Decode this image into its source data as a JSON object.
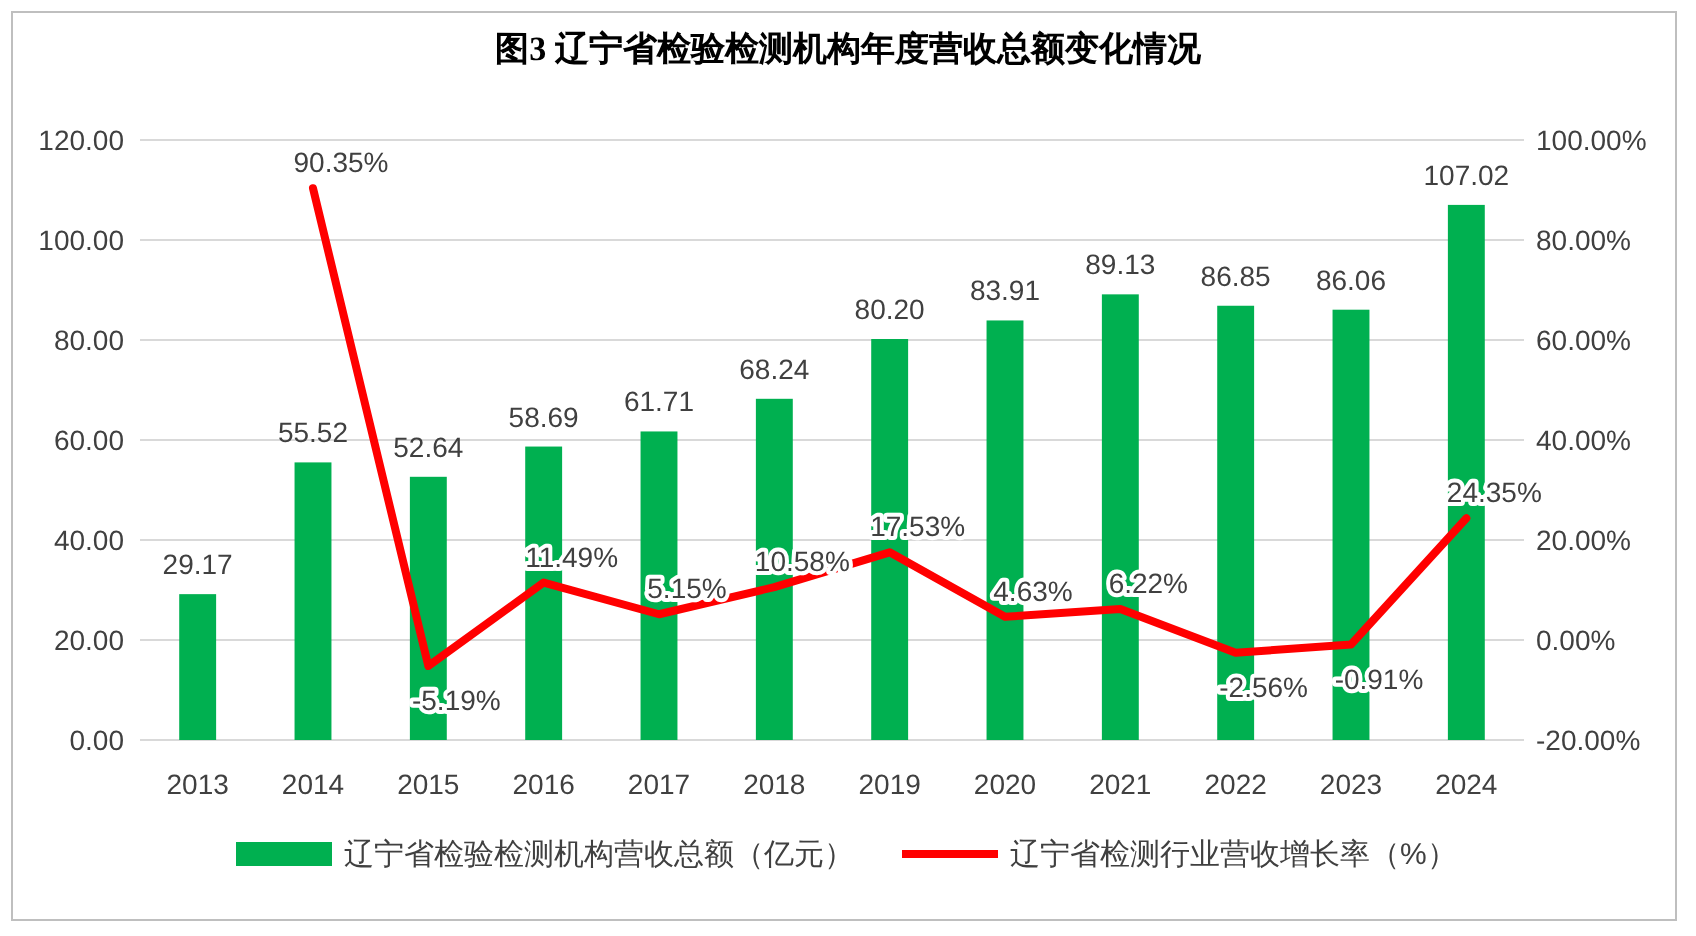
{
  "chart_data": {
    "type": "bar",
    "title": "图3  辽宁省检验检测机构年度营收总额变化情况",
    "categories": [
      "2013",
      "2014",
      "2015",
      "2016",
      "2017",
      "2018",
      "2019",
      "2020",
      "2021",
      "2022",
      "2023",
      "2024"
    ],
    "series": [
      {
        "name": "辽宁省检验检测机构营收总额（亿元）",
        "color": "#00b050",
        "values": [
          29.17,
          55.52,
          52.64,
          58.69,
          61.71,
          68.24,
          80.2,
          83.91,
          89.13,
          86.85,
          86.06,
          107.02
        ],
        "value_labels": [
          "29.17",
          "55.52",
          "52.64",
          "58.69",
          "61.71",
          "68.24",
          "80.20",
          "83.91",
          "89.13",
          "86.85",
          "86.06",
          "107.02"
        ]
      },
      {
        "name": "辽宁省检测行业营收增长率（%）",
        "type": "line",
        "axis": "y2",
        "color": "#ff0000",
        "values": [
          null,
          90.35,
          -5.19,
          11.49,
          5.15,
          10.58,
          17.53,
          4.63,
          6.22,
          -2.56,
          -0.91,
          24.35
        ],
        "value_labels": [
          null,
          "90.35%",
          "-5.19%",
          "11.49%",
          "5.15%",
          "10.58%",
          "17.53%",
          "4.63%",
          "6.22%",
          "-2.56%",
          "-0.91%",
          "24.35%"
        ]
      }
    ],
    "ylim": [
      0,
      120
    ],
    "yticks": [
      {
        "value": 0,
        "label": "0.00"
      },
      {
        "value": 20,
        "label": "20.00"
      },
      {
        "value": 40,
        "label": "40.00"
      },
      {
        "value": 60,
        "label": "60.00"
      },
      {
        "value": 80,
        "label": "80.00"
      },
      {
        "value": 100,
        "label": "100.00"
      },
      {
        "value": 120,
        "label": "120.00"
      }
    ],
    "y2lim": [
      -20,
      100
    ],
    "y2ticks": [
      {
        "value": -20,
        "label": "-20.00%"
      },
      {
        "value": 0,
        "label": "0.00%"
      },
      {
        "value": 20,
        "label": "20.00%"
      },
      {
        "value": 40,
        "label": "40.00%"
      },
      {
        "value": 60,
        "label": "60.00%"
      },
      {
        "value": 80,
        "label": "80.00%"
      },
      {
        "value": 100,
        "label": "100.00%"
      }
    ],
    "grid": "y",
    "legend": "bottom"
  }
}
